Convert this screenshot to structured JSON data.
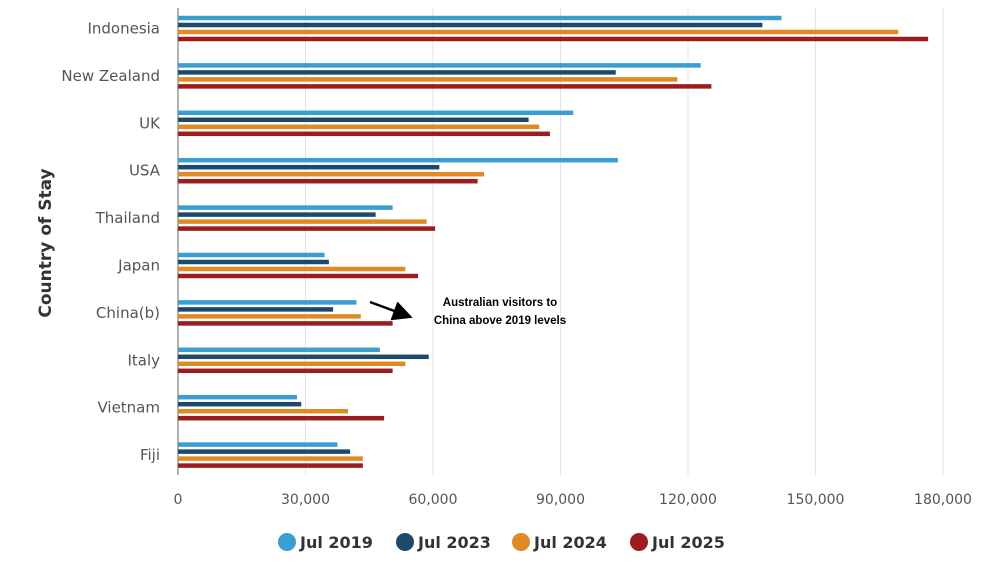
{
  "chart_data": {
    "type": "bar",
    "orientation": "horizontal",
    "ylabel": "Country of Stay",
    "categories": [
      "Indonesia",
      "New Zealand",
      "UK",
      "USA",
      "Thailand",
      "Japan",
      "China(b)",
      "Italy",
      "Vietnam",
      "Fiji"
    ],
    "series": [
      {
        "name": "Jul 2019",
        "color": "#3a9fd0",
        "values": [
          142000,
          123000,
          93000,
          103500,
          50500,
          34500,
          42000,
          47500,
          28000,
          37500
        ]
      },
      {
        "name": "Jul 2023",
        "color": "#1d4a6b",
        "values": [
          137500,
          103000,
          82500,
          61500,
          46500,
          35500,
          36500,
          59000,
          29000,
          40500
        ]
      },
      {
        "name": "Jul 2024",
        "color": "#e08a25",
        "values": [
          169500,
          117500,
          85000,
          72000,
          58500,
          53500,
          43000,
          53500,
          40000,
          43500
        ]
      },
      {
        "name": "Jul 2025",
        "color": "#9e1c1c",
        "values": [
          176500,
          125500,
          87500,
          70500,
          60500,
          56500,
          50500,
          50500,
          48500,
          43500
        ]
      }
    ],
    "xlim": [
      0,
      180000
    ],
    "ticks": [
      0,
      30000,
      60000,
      90000,
      120000,
      150000,
      180000
    ],
    "tick_labels": [
      "0",
      "30,000",
      "60,000",
      "90,000",
      "120,000",
      "150,000",
      "180,000"
    ],
    "grid": true,
    "legend_position": "bottom",
    "annotation": {
      "lines": [
        "Australian visitors to",
        "China above 2019 levels"
      ],
      "target_category": "China(b)"
    }
  }
}
